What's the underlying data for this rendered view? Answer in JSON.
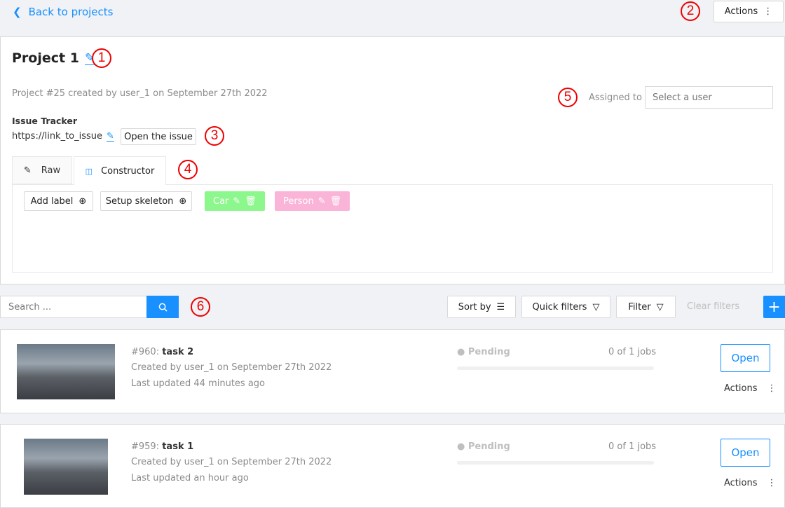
{
  "header": {
    "back_label": "Back to projects",
    "actions_label": "Actions"
  },
  "project": {
    "title": "Project 1",
    "meta": "Project #25 created by user_1 on September 27th 2022",
    "assigned_label": "Assigned to",
    "assignee_placeholder": "Select a user",
    "issue_tracker_label": "Issue Tracker",
    "issue_link": "https://link_to_issue",
    "open_issue_label": "Open the issue",
    "tabs": [
      {
        "label": "Raw",
        "icon": "edit-icon"
      },
      {
        "label": "Constructor",
        "icon": "blocks-icon",
        "active": true
      }
    ],
    "add_label": "Add label",
    "setup_skeleton": "Setup skeleton",
    "labels": [
      {
        "name": "Car",
        "color": "#8cf78c"
      },
      {
        "name": "Person",
        "color": "#fab4d8"
      }
    ]
  },
  "toolbar": {
    "search_placeholder": "Search ...",
    "sort_by": "Sort by",
    "quick_filters": "Quick filters",
    "filter": "Filter",
    "clear_filters": "Clear filters",
    "add": "+"
  },
  "tasks": [
    {
      "id": "#960: ",
      "name": "task 2",
      "created": "Created by user_1 on September 27th 2022",
      "updated": "Last updated 44 minutes ago",
      "status": "Pending",
      "jobs": "0 of 1 jobs",
      "progress": 0,
      "open": "Open",
      "actions": "Actions"
    },
    {
      "id": "#959: ",
      "name": "task 1",
      "created": "Created by user_1 on September 27th 2022",
      "updated": "Last updated an hour ago",
      "status": "Pending",
      "jobs": "0 of 1 jobs",
      "progress": 0,
      "open": "Open",
      "actions": "Actions"
    }
  ],
  "annotations": [
    "1",
    "2",
    "3",
    "4",
    "5",
    "6"
  ],
  "colors": {
    "accent": "#1890ff",
    "background": "#f0f2f5"
  }
}
